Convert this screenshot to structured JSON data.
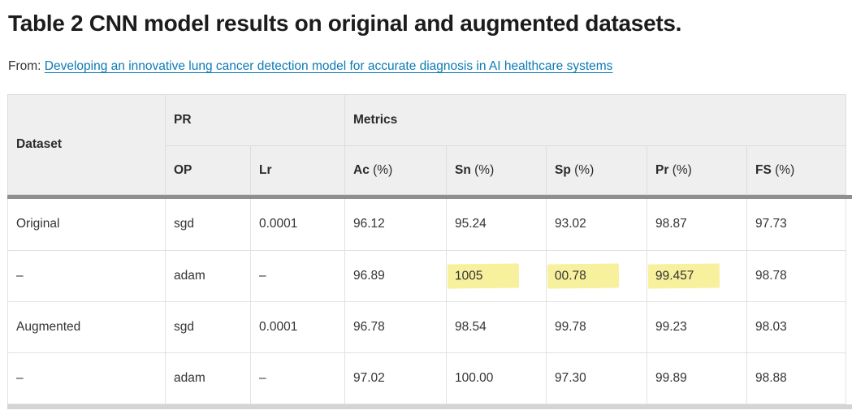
{
  "page": {
    "title": "Table 2 CNN model results on original and augmented datasets.",
    "from_label": "From:",
    "from_link_text": "Developing an innovative lung cancer detection model for accurate diagnosis in AI healthcare systems"
  },
  "table": {
    "header": {
      "dataset": "Dataset",
      "pr": "PR",
      "metrics": "Metrics"
    },
    "sub": [
      {
        "b": "OP",
        "rest": ""
      },
      {
        "b": "Lr",
        "rest": ""
      },
      {
        "b": "Ac",
        "rest": " (%)"
      },
      {
        "b": "Sn",
        "rest": " (%)"
      },
      {
        "b": "Sp",
        "rest": " (%)"
      },
      {
        "b": "Pr",
        "rest": " (%)"
      },
      {
        "b": "FS",
        "rest": " (%)"
      }
    ],
    "rows": [
      {
        "cells": [
          "Original",
          "sgd",
          "0.0001",
          "96.12",
          "95.24",
          "93.02",
          "98.87",
          "97.73"
        ],
        "highlight": []
      },
      {
        "cells": [
          "–",
          "adam",
          "–",
          "96.89",
          "1005",
          "00.78",
          "99.457",
          "98.78"
        ],
        "highlight": [
          4,
          5,
          6
        ]
      },
      {
        "cells": [
          "Augmented",
          "sgd",
          "0.0001",
          "96.78",
          "98.54",
          "99.78",
          "99.23",
          "98.03"
        ],
        "highlight": []
      },
      {
        "cells": [
          "–",
          "adam",
          "–",
          "97.02",
          "100.00",
          "97.30",
          "99.89",
          "98.88"
        ],
        "highlight": []
      }
    ]
  },
  "colors": {
    "link": "#0c7bb3",
    "highlight": "#f7f09d",
    "header_bg": "#efefef",
    "cell_border": "#e2e2e2",
    "outer_border": "#dcdcdc",
    "header_separator": "#8f8f8f",
    "bottom_bar": "#d4d4d4",
    "title_text": "#1c1c1c",
    "body_text": "#333333"
  }
}
